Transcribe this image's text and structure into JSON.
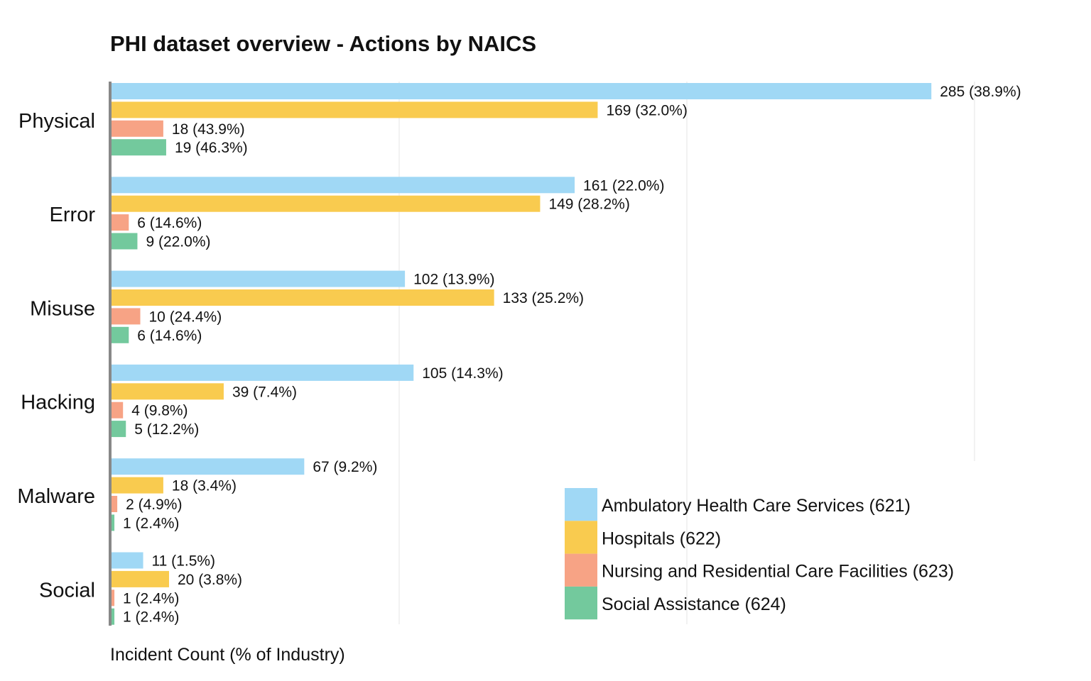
{
  "chart_data": {
    "type": "bar",
    "orientation": "horizontal",
    "title": "PHI dataset overview - Actions by NAICS",
    "xlabel": "Incident Count (% of Industry)",
    "ylabel": "",
    "xlim": [
      0,
      300
    ],
    "grid": true,
    "legend_position": "bottom-right",
    "categories": [
      "Physical",
      "Error",
      "Misuse",
      "Hacking",
      "Malware",
      "Social"
    ],
    "series": [
      {
        "name": "Ambulatory Health Care Services (621)",
        "color": "#a0d8f5",
        "values": [
          285,
          161,
          102,
          105,
          67,
          11
        ],
        "labels": [
          "285 (38.9%)",
          "161 (22.0%)",
          "102 (13.9%)",
          "105 (14.3%)",
          "67 (9.2%)",
          "11 (1.5%)"
        ]
      },
      {
        "name": "Hospitals (622)",
        "color": "#f9cb4f",
        "values": [
          169,
          149,
          133,
          39,
          18,
          20
        ],
        "labels": [
          "169 (32.0%)",
          "149 (28.2%)",
          "133 (25.2%)",
          "39 (7.4%)",
          "18 (3.4%)",
          "20 (3.8%)"
        ]
      },
      {
        "name": "Nursing and Residential Care Facilities (623)",
        "color": "#f7a385",
        "values": [
          18,
          6,
          10,
          4,
          2,
          1
        ],
        "labels": [
          "18 (43.9%)",
          "6 (14.6%)",
          "10 (24.4%)",
          "4 (9.8%)",
          "2 (4.9%)",
          "1 (2.4%)"
        ]
      },
      {
        "name": "Social Assistance (624)",
        "color": "#73c99d",
        "values": [
          19,
          9,
          6,
          5,
          1,
          1
        ],
        "labels": [
          "19 (46.3%)",
          "9 (22.0%)",
          "6 (14.6%)",
          "5 (12.2%)",
          "1 (2.4%)",
          "1 (2.4%)"
        ]
      }
    ]
  }
}
